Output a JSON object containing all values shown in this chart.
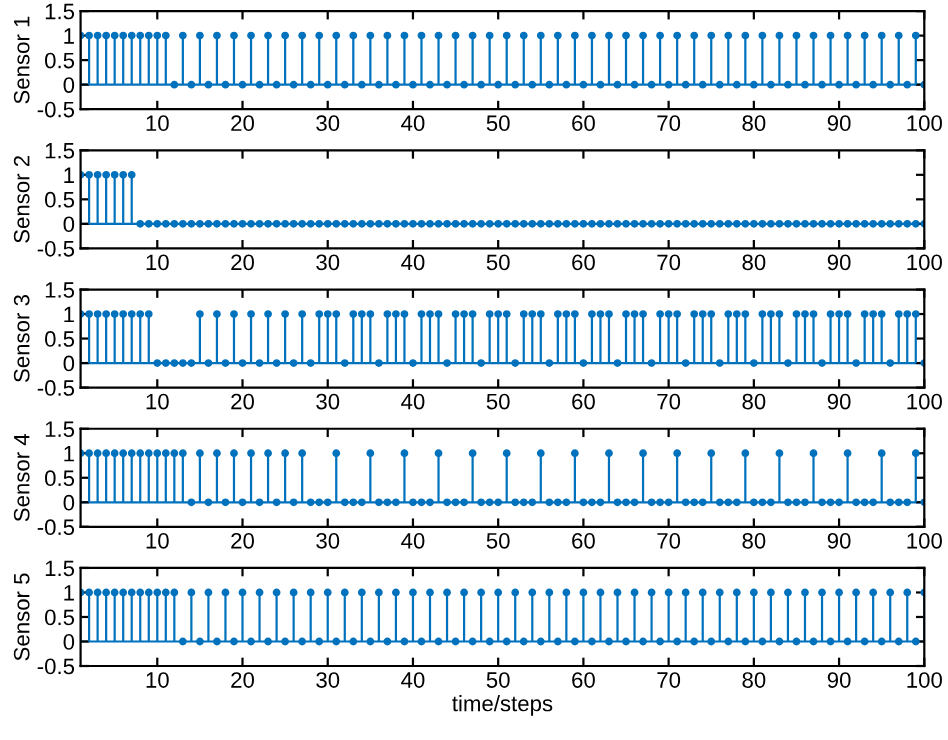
{
  "chart_data": [
    {
      "type": "lollipop",
      "ylabel": "Sensor 1",
      "ref_lines": [
        {
          "axis": "y",
          "value": 0,
          "color": "#0072bd"
        }
      ],
      "color": "#0072bd",
      "marker": "circle",
      "grid": false,
      "xlim": [
        1,
        100
      ],
      "xticks": [
        10,
        20,
        30,
        40,
        50,
        60,
        70,
        80,
        90,
        100
      ],
      "ylim": [
        -0.5,
        1.5
      ],
      "yticks": [
        -0.5,
        0,
        0.5,
        1,
        1.5
      ],
      "x": [
        1,
        2,
        3,
        4,
        5,
        6,
        7,
        8,
        9,
        10,
        11,
        12,
        13,
        14,
        15,
        16,
        17,
        18,
        19,
        20,
        21,
        22,
        23,
        24,
        25,
        26,
        27,
        28,
        29,
        30,
        31,
        32,
        33,
        34,
        35,
        36,
        37,
        38,
        39,
        40,
        41,
        42,
        43,
        44,
        45,
        46,
        47,
        48,
        49,
        50,
        51,
        52,
        53,
        54,
        55,
        56,
        57,
        58,
        59,
        60,
        61,
        62,
        63,
        64,
        65,
        66,
        67,
        68,
        69,
        70,
        71,
        72,
        73,
        74,
        75,
        76,
        77,
        78,
        79,
        80,
        81,
        82,
        83,
        84,
        85,
        86,
        87,
        88,
        89,
        90,
        91,
        92,
        93,
        94,
        95,
        96,
        97,
        98,
        99,
        100
      ],
      "values": [
        1,
        1,
        1,
        1,
        1,
        1,
        1,
        1,
        1,
        1,
        1,
        0,
        1,
        0,
        1,
        0,
        1,
        0,
        1,
        0,
        1,
        0,
        1,
        0,
        1,
        0,
        1,
        0,
        1,
        0,
        1,
        0,
        1,
        0,
        1,
        0,
        1,
        0,
        1,
        0,
        1,
        0,
        1,
        0,
        1,
        0,
        1,
        0,
        1,
        0,
        1,
        0,
        1,
        0,
        1,
        0,
        1,
        0,
        1,
        0,
        1,
        0,
        1,
        0,
        1,
        0,
        1,
        0,
        1,
        0,
        1,
        0,
        1,
        0,
        1,
        0,
        1,
        0,
        1,
        0,
        1,
        0,
        1,
        0,
        1,
        0,
        1,
        0,
        1,
        0,
        1,
        0,
        1,
        0,
        1,
        0,
        1,
        0,
        1,
        0
      ]
    },
    {
      "type": "lollipop",
      "ylabel": "Sensor 2",
      "ref_lines": [
        {
          "axis": "y",
          "value": 0,
          "color": "#0072bd"
        }
      ],
      "color": "#0072bd",
      "marker": "circle",
      "grid": false,
      "xlim": [
        1,
        100
      ],
      "xticks": [
        10,
        20,
        30,
        40,
        50,
        60,
        70,
        80,
        90,
        100
      ],
      "ylim": [
        -0.5,
        1.5
      ],
      "yticks": [
        -0.5,
        0,
        0.5,
        1,
        1.5
      ],
      "x": [
        1,
        2,
        3,
        4,
        5,
        6,
        7,
        8,
        9,
        10,
        11,
        12,
        13,
        14,
        15,
        16,
        17,
        18,
        19,
        20,
        21,
        22,
        23,
        24,
        25,
        26,
        27,
        28,
        29,
        30,
        31,
        32,
        33,
        34,
        35,
        36,
        37,
        38,
        39,
        40,
        41,
        42,
        43,
        44,
        45,
        46,
        47,
        48,
        49,
        50,
        51,
        52,
        53,
        54,
        55,
        56,
        57,
        58,
        59,
        60,
        61,
        62,
        63,
        64,
        65,
        66,
        67,
        68,
        69,
        70,
        71,
        72,
        73,
        74,
        75,
        76,
        77,
        78,
        79,
        80,
        81,
        82,
        83,
        84,
        85,
        86,
        87,
        88,
        89,
        90,
        91,
        92,
        93,
        94,
        95,
        96,
        97,
        98,
        99,
        100
      ],
      "values": [
        1,
        1,
        1,
        1,
        1,
        1,
        1,
        0,
        0,
        0,
        0,
        0,
        0,
        0,
        0,
        0,
        0,
        0,
        0,
        0,
        0,
        0,
        0,
        0,
        0,
        0,
        0,
        0,
        0,
        0,
        0,
        0,
        0,
        0,
        0,
        0,
        0,
        0,
        0,
        0,
        0,
        0,
        0,
        0,
        0,
        0,
        0,
        0,
        0,
        0,
        0,
        0,
        0,
        0,
        0,
        0,
        0,
        0,
        0,
        0,
        0,
        0,
        0,
        0,
        0,
        0,
        0,
        0,
        0,
        0,
        0,
        0,
        0,
        0,
        0,
        0,
        0,
        0,
        0,
        0,
        0,
        0,
        0,
        0,
        0,
        0,
        0,
        0,
        0,
        0,
        0,
        0,
        0,
        0,
        0,
        0,
        0,
        0,
        0,
        0
      ]
    },
    {
      "type": "lollipop",
      "ylabel": "Sensor 3",
      "ref_lines": [
        {
          "axis": "y",
          "value": 0,
          "color": "#0072bd"
        }
      ],
      "color": "#0072bd",
      "marker": "circle",
      "grid": false,
      "xlim": [
        1,
        100
      ],
      "xticks": [
        10,
        20,
        30,
        40,
        50,
        60,
        70,
        80,
        90,
        100
      ],
      "ylim": [
        -0.5,
        1.5
      ],
      "yticks": [
        -0.5,
        0,
        0.5,
        1,
        1.5
      ],
      "x": [
        1,
        2,
        3,
        4,
        5,
        6,
        7,
        8,
        9,
        10,
        11,
        12,
        13,
        14,
        15,
        16,
        17,
        18,
        19,
        20,
        21,
        22,
        23,
        24,
        25,
        26,
        27,
        28,
        29,
        30,
        31,
        32,
        33,
        34,
        35,
        36,
        37,
        38,
        39,
        40,
        41,
        42,
        43,
        44,
        45,
        46,
        47,
        48,
        49,
        50,
        51,
        52,
        53,
        54,
        55,
        56,
        57,
        58,
        59,
        60,
        61,
        62,
        63,
        64,
        65,
        66,
        67,
        68,
        69,
        70,
        71,
        72,
        73,
        74,
        75,
        76,
        77,
        78,
        79,
        80,
        81,
        82,
        83,
        84,
        85,
        86,
        87,
        88,
        89,
        90,
        91,
        92,
        93,
        94,
        95,
        96,
        97,
        98,
        99,
        100
      ],
      "values": [
        1,
        1,
        1,
        1,
        1,
        1,
        1,
        1,
        1,
        0,
        0,
        0,
        0,
        0,
        1,
        0,
        1,
        0,
        1,
        0,
        1,
        0,
        1,
        0,
        1,
        0,
        1,
        0,
        1,
        1,
        1,
        0,
        1,
        1,
        1,
        0,
        1,
        1,
        1,
        0,
        1,
        1,
        1,
        0,
        1,
        1,
        1,
        0,
        1,
        1,
        1,
        0,
        1,
        1,
        1,
        0,
        1,
        1,
        1,
        0,
        1,
        1,
        1,
        0,
        1,
        1,
        1,
        0,
        1,
        1,
        1,
        0,
        1,
        1,
        1,
        0,
        1,
        1,
        1,
        0,
        1,
        1,
        1,
        0,
        1,
        1,
        1,
        0,
        1,
        1,
        1,
        0,
        1,
        1,
        1,
        0,
        1,
        1,
        1,
        0
      ]
    },
    {
      "type": "lollipop",
      "ylabel": "Sensor 4",
      "ref_lines": [
        {
          "axis": "y",
          "value": 0,
          "color": "#0072bd"
        }
      ],
      "color": "#0072bd",
      "marker": "circle",
      "grid": false,
      "xlim": [
        1,
        100
      ],
      "xticks": [
        10,
        20,
        30,
        40,
        50,
        60,
        70,
        80,
        90,
        100
      ],
      "ylim": [
        -0.5,
        1.5
      ],
      "yticks": [
        -0.5,
        0,
        0.5,
        1,
        1.5
      ],
      "x": [
        1,
        2,
        3,
        4,
        5,
        6,
        7,
        8,
        9,
        10,
        11,
        12,
        13,
        14,
        15,
        16,
        17,
        18,
        19,
        20,
        21,
        22,
        23,
        24,
        25,
        26,
        27,
        28,
        29,
        30,
        31,
        32,
        33,
        34,
        35,
        36,
        37,
        38,
        39,
        40,
        41,
        42,
        43,
        44,
        45,
        46,
        47,
        48,
        49,
        50,
        51,
        52,
        53,
        54,
        55,
        56,
        57,
        58,
        59,
        60,
        61,
        62,
        63,
        64,
        65,
        66,
        67,
        68,
        69,
        70,
        71,
        72,
        73,
        74,
        75,
        76,
        77,
        78,
        79,
        80,
        81,
        82,
        83,
        84,
        85,
        86,
        87,
        88,
        89,
        90,
        91,
        92,
        93,
        94,
        95,
        96,
        97,
        98,
        99,
        100
      ],
      "values": [
        1,
        1,
        1,
        1,
        1,
        1,
        1,
        1,
        1,
        1,
        1,
        1,
        1,
        0,
        1,
        0,
        1,
        0,
        1,
        0,
        1,
        0,
        1,
        0,
        1,
        0,
        1,
        0,
        0,
        0,
        1,
        0,
        0,
        0,
        1,
        0,
        0,
        0,
        1,
        0,
        0,
        0,
        1,
        0,
        0,
        0,
        1,
        0,
        0,
        0,
        1,
        0,
        0,
        0,
        1,
        0,
        0,
        0,
        1,
        0,
        0,
        0,
        1,
        0,
        0,
        0,
        1,
        0,
        0,
        0,
        1,
        0,
        0,
        0,
        1,
        0,
        0,
        0,
        1,
        0,
        0,
        0,
        1,
        0,
        0,
        0,
        1,
        0,
        0,
        0,
        1,
        0,
        0,
        0,
        1,
        0,
        0,
        0,
        1,
        0
      ]
    },
    {
      "type": "lollipop",
      "ylabel": "Sensor 5",
      "ref_lines": [
        {
          "axis": "y",
          "value": 0,
          "color": "#0072bd"
        }
      ],
      "xlabel": "time/steps",
      "color": "#0072bd",
      "marker": "circle",
      "grid": false,
      "xlim": [
        1,
        100
      ],
      "xticks": [
        10,
        20,
        30,
        40,
        50,
        60,
        70,
        80,
        90,
        100
      ],
      "ylim": [
        -0.5,
        1.5
      ],
      "yticks": [
        -0.5,
        0,
        0.5,
        1,
        1.5
      ],
      "x": [
        1,
        2,
        3,
        4,
        5,
        6,
        7,
        8,
        9,
        10,
        11,
        12,
        13,
        14,
        15,
        16,
        17,
        18,
        19,
        20,
        21,
        22,
        23,
        24,
        25,
        26,
        27,
        28,
        29,
        30,
        31,
        32,
        33,
        34,
        35,
        36,
        37,
        38,
        39,
        40,
        41,
        42,
        43,
        44,
        45,
        46,
        47,
        48,
        49,
        50,
        51,
        52,
        53,
        54,
        55,
        56,
        57,
        58,
        59,
        60,
        61,
        62,
        63,
        64,
        65,
        66,
        67,
        68,
        69,
        70,
        71,
        72,
        73,
        74,
        75,
        76,
        77,
        78,
        79,
        80,
        81,
        82,
        83,
        84,
        85,
        86,
        87,
        88,
        89,
        90,
        91,
        92,
        93,
        94,
        95,
        96,
        97,
        98,
        99,
        100
      ],
      "values": [
        1,
        1,
        1,
        1,
        1,
        1,
        1,
        1,
        1,
        1,
        1,
        1,
        0,
        1,
        0,
        1,
        0,
        1,
        0,
        1,
        0,
        1,
        0,
        1,
        0,
        1,
        0,
        1,
        0,
        1,
        0,
        1,
        0,
        1,
        0,
        1,
        0,
        1,
        0,
        1,
        0,
        1,
        0,
        1,
        0,
        1,
        0,
        1,
        0,
        1,
        0,
        1,
        0,
        1,
        0,
        1,
        0,
        1,
        0,
        1,
        0,
        1,
        0,
        1,
        0,
        1,
        0,
        1,
        0,
        1,
        0,
        1,
        0,
        1,
        0,
        1,
        0,
        1,
        0,
        1,
        0,
        1,
        0,
        1,
        0,
        1,
        0,
        1,
        0,
        1,
        0,
        1,
        0,
        1,
        0,
        1,
        0,
        1,
        0,
        1
      ]
    }
  ]
}
